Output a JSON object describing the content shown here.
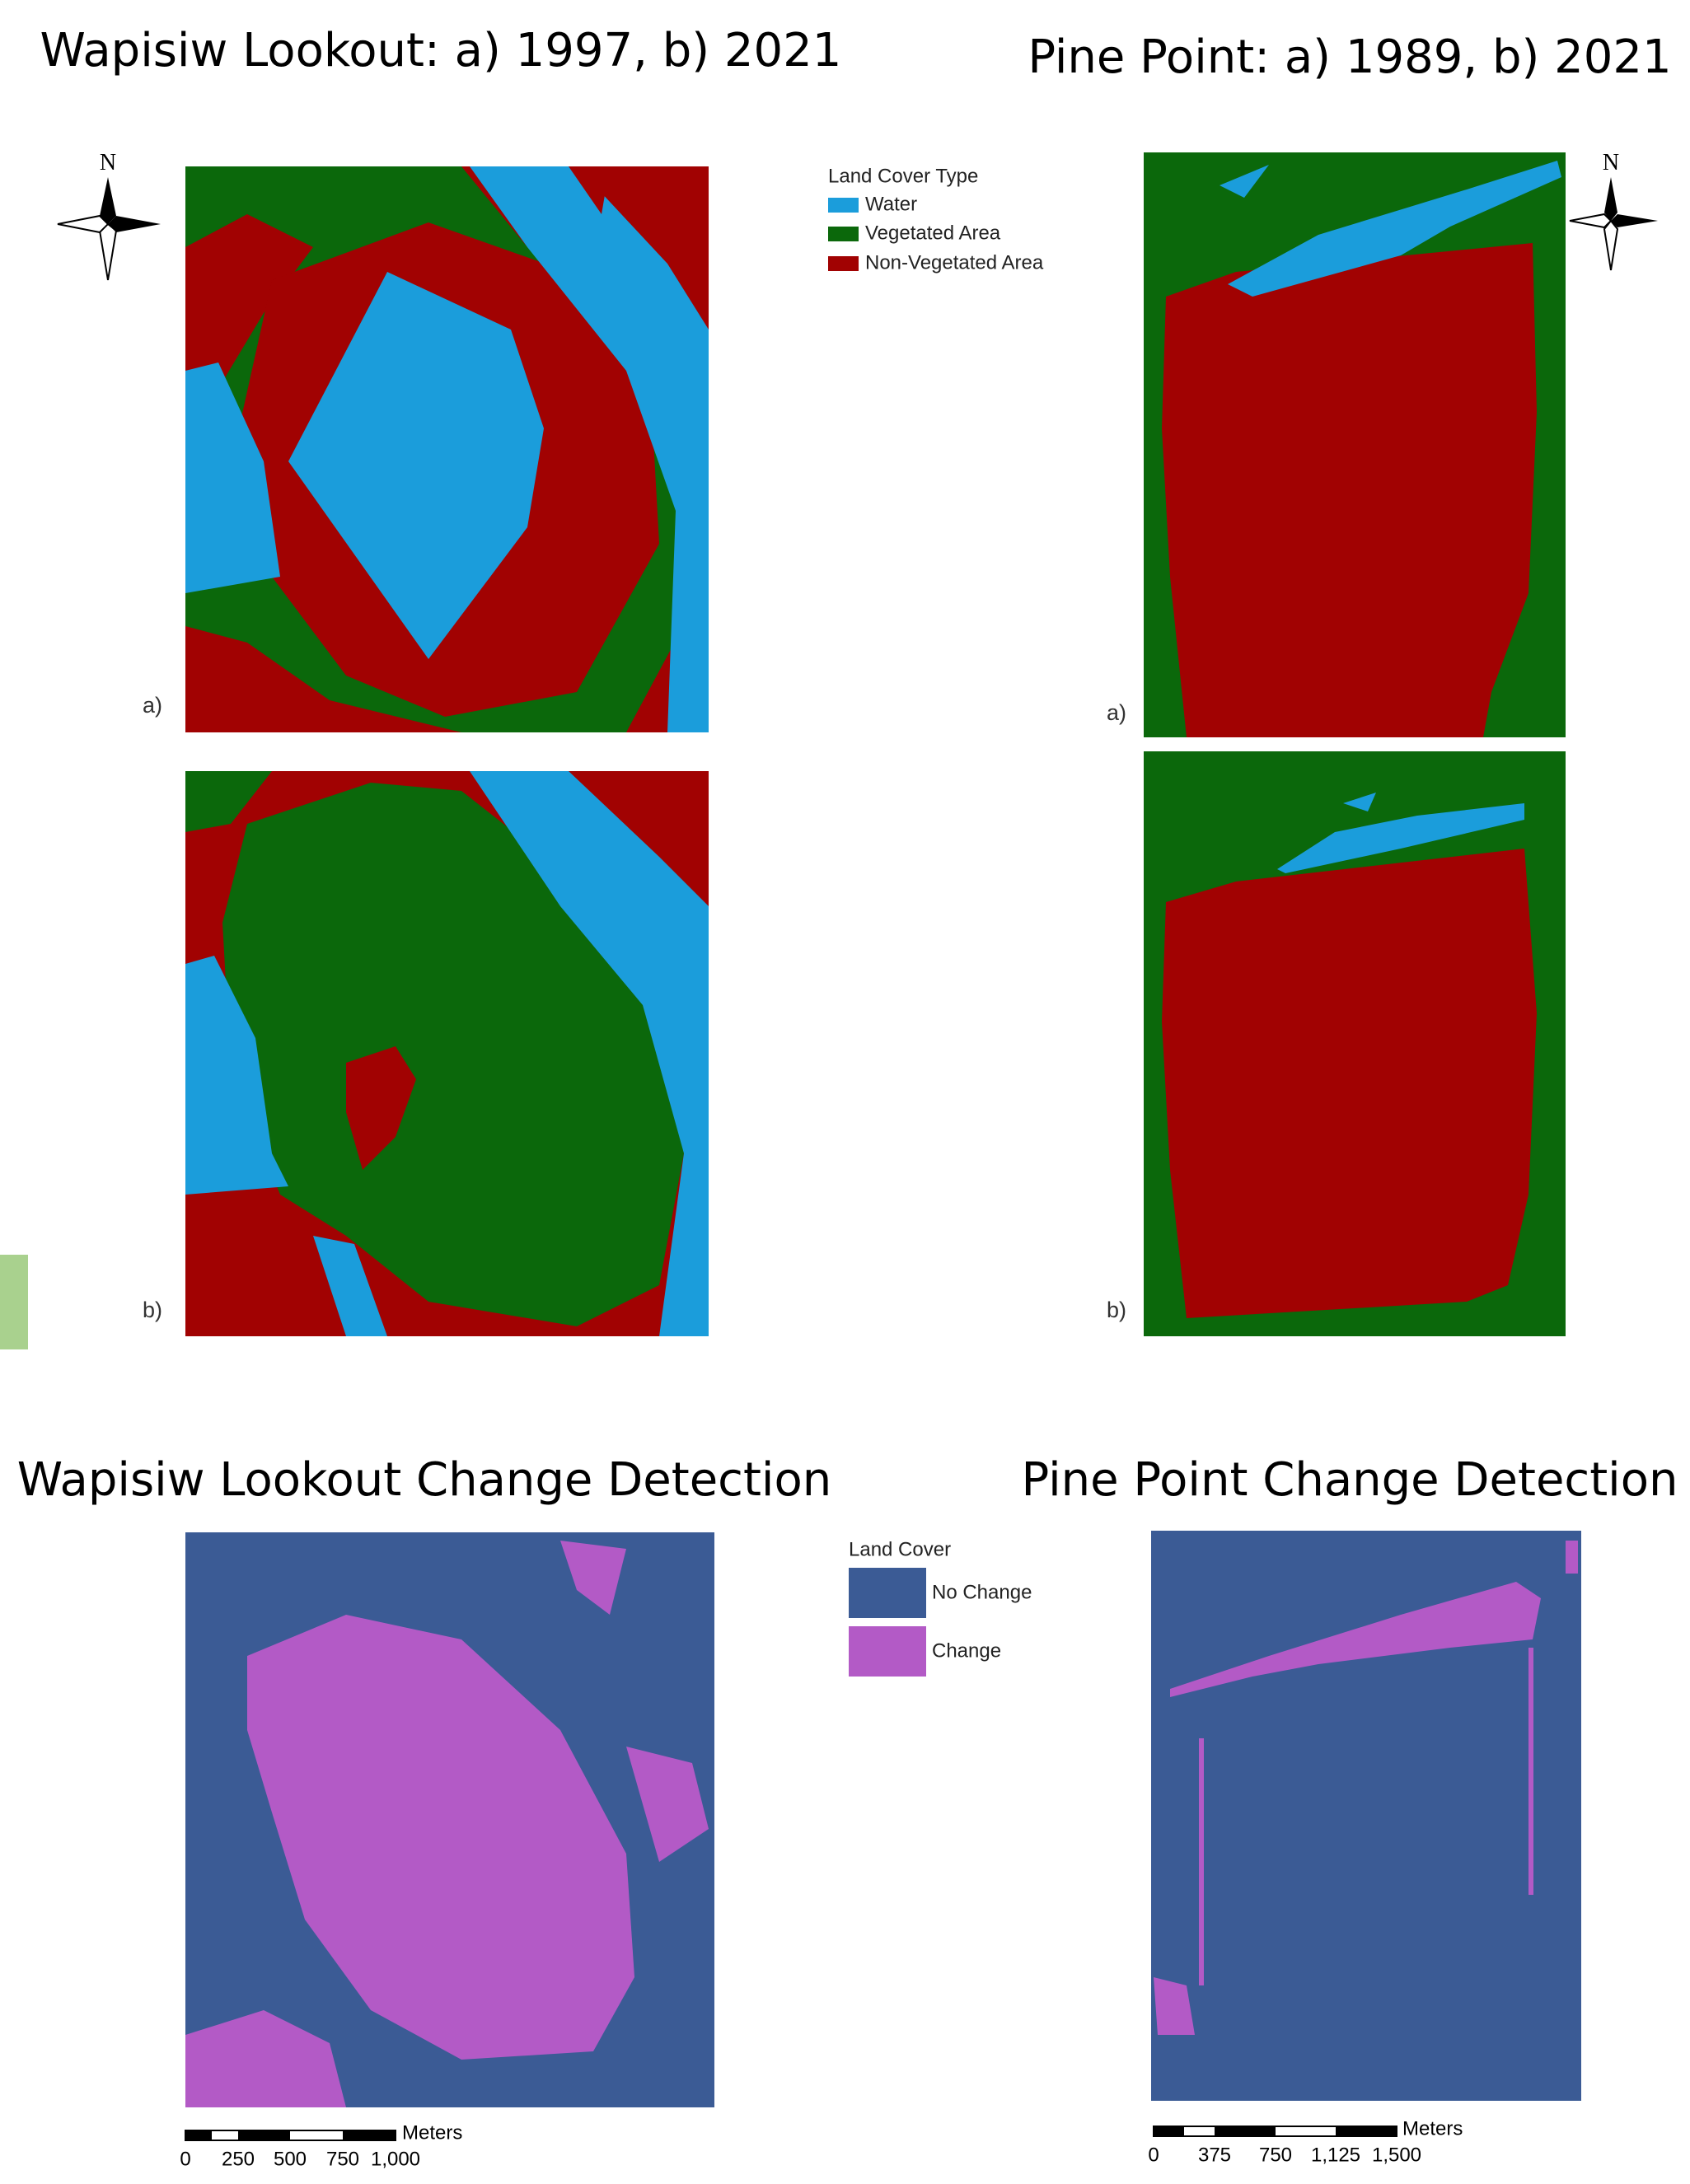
{
  "titles": {
    "wapisiw_classification": "Wapisiw Lookout: a) 1997, b) 2021",
    "pine_point_classification": "Pine Point: a) 1989, b) 2021",
    "wapisiw_change": "Wapisiw Lookout Change Detection",
    "pine_point_change": "Pine Point Change Detection"
  },
  "panel_labels": [
    "a)",
    "b)"
  ],
  "north_label": "N",
  "land_cover_legend": {
    "title": "Land Cover Type",
    "items": [
      {
        "label": "Water",
        "color": "#1b9ddb"
      },
      {
        "label": "Vegetated Area",
        "color": "#0b680b"
      },
      {
        "label": "Non-Vegetated Area",
        "color": "#a10202"
      }
    ]
  },
  "change_legend": {
    "title": "Land Cover",
    "items": [
      {
        "label": "No Change",
        "color": "#3b5b95"
      },
      {
        "label": "Change",
        "color": "#b35ac6"
      }
    ]
  },
  "scale_bars": [
    {
      "unit": "Meters",
      "labels": [
        "0",
        "250",
        "500",
        "750",
        "1,000"
      ]
    },
    {
      "unit": "Meters",
      "labels": [
        "0",
        "375",
        "750",
        "1,125",
        "1,500"
      ]
    }
  ]
}
